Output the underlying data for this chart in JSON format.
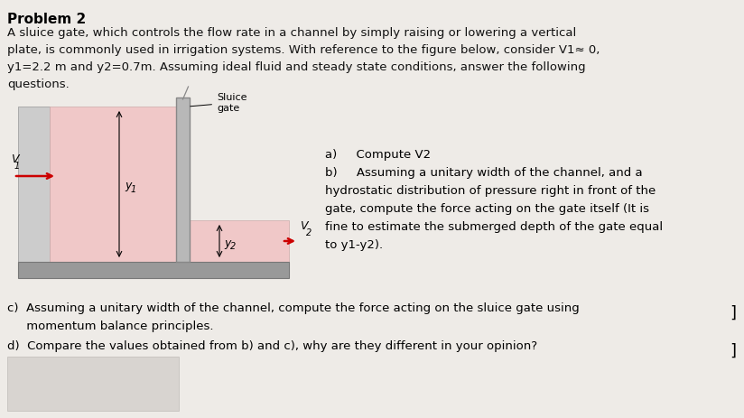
{
  "bg_color": "#eeebe7",
  "title": "Problem 2",
  "line1": "A sluice gate, which controls the flow rate in a channel by simply raising or lowering a vertical",
  "line2": "plate, is commonly used in irrigation systems. With reference to the figure below, consider V1≈ 0,",
  "line3": "y1=2.2 m and y2=0.7m. Assuming ideal fluid and steady state conditions, answer the following",
  "line4": "questions.",
  "water_color": "#f0c8c8",
  "gate_color": "#b8b8b8",
  "floor_color": "#999999",
  "wall_color": "#cccccc",
  "label_sluice": "Sluice",
  "label_gate": "gate",
  "label_v1": "V",
  "label_v1_sub": "1",
  "label_y1": "y",
  "label_y1_sub": "1",
  "label_y2": "y",
  "label_y2_sub": "2",
  "label_V2": "V",
  "label_V2_sub": "2",
  "qa": "a)     Compute V2",
  "qb0": "b)     Assuming a unitary width of the channel, and a",
  "qb1": "hydrostatic distribution of pressure right in front of the",
  "qb2": "gate, compute the force acting on the gate itself (It is",
  "qb3": "fine to estimate the submerged depth of the gate equal",
  "qb4": "to y1-y2).",
  "qc0": "c)  Assuming a unitary width of the channel, compute the force acting on the sluice gate using",
  "qc1": "     momentum balance principles.",
  "qd0": "d)  Compare the values obtained from b) and c), why are they different in your opinion?"
}
